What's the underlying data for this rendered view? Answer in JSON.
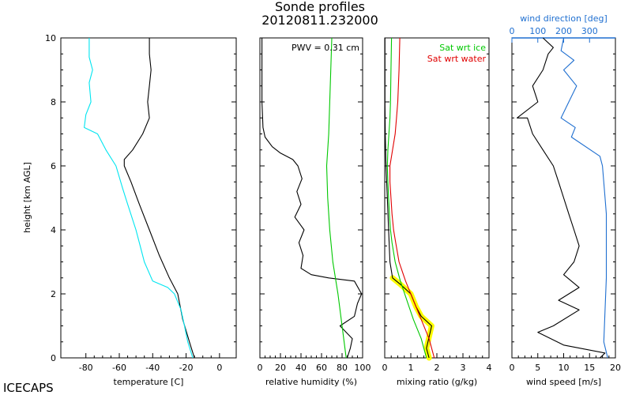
{
  "title": "Sonde profiles",
  "subtitle": "20120811.232000",
  "footer": "ICECAPS",
  "ylabel": "height [km AGL]",
  "colors": {
    "temperature": "#000000",
    "dewpoint": "#00e5f0",
    "rh": "#000000",
    "rh_ice": "#00c800",
    "mixing": "#000000",
    "mixing_highlight": "#ffff00",
    "sat_ice": "#00c800",
    "sat_water": "#e00000",
    "speed": "#000000",
    "direction": "#1f6fd0"
  },
  "chart_data": [
    {
      "type": "line",
      "panel": "temperature",
      "xlabel": "temperature [C]",
      "xlim": [
        -95,
        10
      ],
      "xticks": [
        -80,
        -60,
        -40,
        -20,
        0
      ],
      "ylim": [
        0,
        10
      ],
      "yticks": [
        0,
        2,
        4,
        6,
        8,
        10
      ],
      "series": [
        {
          "name": "temperature",
          "color": "#000000",
          "points": [
            [
              -15,
              0
            ],
            [
              -18,
              0.5
            ],
            [
              -22,
              1.2
            ],
            [
              -25,
              2
            ],
            [
              -30,
              2.5
            ],
            [
              -36,
              3.2
            ],
            [
              -42,
              4
            ],
            [
              -48,
              4.8
            ],
            [
              -53,
              5.5
            ],
            [
              -57,
              6
            ],
            [
              -57,
              6.2
            ],
            [
              -52,
              6.5
            ],
            [
              -46,
              7
            ],
            [
              -42,
              7.5
            ],
            [
              -43,
              8
            ],
            [
              -42,
              8.5
            ],
            [
              -41,
              9
            ],
            [
              -42,
              9.5
            ],
            [
              -42,
              10
            ]
          ]
        },
        {
          "name": "dewpoint",
          "color": "#00e5f0",
          "points": [
            [
              -16,
              0
            ],
            [
              -19,
              0.5
            ],
            [
              -21,
              1
            ],
            [
              -23,
              1.5
            ],
            [
              -27,
              2
            ],
            [
              -31,
              2.2
            ],
            [
              -40,
              2.4
            ],
            [
              -45,
              3
            ],
            [
              -47,
              3.4
            ],
            [
              -50,
              4
            ],
            [
              -55,
              4.8
            ],
            [
              -58,
              5.3
            ],
            [
              -62,
              6
            ],
            [
              -68,
              6.5
            ],
            [
              -73,
              7
            ],
            [
              -81,
              7.2
            ],
            [
              -80,
              7.6
            ],
            [
              -77,
              8
            ],
            [
              -78,
              8.6
            ],
            [
              -76,
              9
            ],
            [
              -78,
              9.4
            ],
            [
              -78,
              10
            ]
          ]
        }
      ]
    },
    {
      "type": "line",
      "panel": "relative_humidity",
      "xlabel": "relative humidity (%)",
      "xlim": [
        0,
        100
      ],
      "xticks": [
        0,
        20,
        40,
        60,
        80,
        100
      ],
      "ylim": [
        0,
        10
      ],
      "annotation": "PWV = 0.31 cm",
      "series": [
        {
          "name": "rh_wrt_water",
          "color": "#000000",
          "points": [
            [
              85,
              0
            ],
            [
              88,
              0.3
            ],
            [
              90,
              0.6
            ],
            [
              78,
              1
            ],
            [
              92,
              1.3
            ],
            [
              95,
              1.7
            ],
            [
              99,
              2
            ],
            [
              92,
              2.4
            ],
            [
              67,
              2.5
            ],
            [
              50,
              2.6
            ],
            [
              40,
              2.8
            ],
            [
              42,
              3.2
            ],
            [
              38,
              3.6
            ],
            [
              43,
              4
            ],
            [
              34,
              4.4
            ],
            [
              40,
              4.8
            ],
            [
              36,
              5.2
            ],
            [
              41,
              5.6
            ],
            [
              37,
              6
            ],
            [
              32,
              6.2
            ],
            [
              20,
              6.4
            ],
            [
              12,
              6.6
            ],
            [
              5,
              6.9
            ],
            [
              3,
              7.2
            ],
            [
              2,
              8
            ],
            [
              2,
              9
            ],
            [
              2,
              10
            ]
          ]
        },
        {
          "name": "rh_wrt_ice",
          "color": "#00c800",
          "points": [
            [
              84,
              0
            ],
            [
              80,
              1
            ],
            [
              76,
              2
            ],
            [
              71,
              3
            ],
            [
              68,
              4
            ],
            [
              66,
              5
            ],
            [
              65,
              6
            ],
            [
              67,
              7
            ],
            [
              68,
              8
            ],
            [
              69,
              9
            ],
            [
              70,
              10
            ]
          ]
        }
      ]
    },
    {
      "type": "line",
      "panel": "mixing_ratio",
      "xlabel": "mixing ratio (g/kg)",
      "xlim": [
        0,
        4
      ],
      "xticks": [
        0,
        1,
        2,
        3,
        4
      ],
      "ylim": [
        0,
        10
      ],
      "legend": [
        "Sat wrt ice",
        "Sat wrt water"
      ],
      "series": [
        {
          "name": "mixing ratio",
          "color": "#000000",
          "points": [
            [
              1.7,
              0
            ],
            [
              1.6,
              0.3
            ],
            [
              1.8,
              1
            ],
            [
              1.4,
              1.3
            ],
            [
              1.2,
              1.6
            ],
            [
              1.0,
              2
            ],
            [
              0.6,
              2.3
            ],
            [
              0.3,
              2.5
            ],
            [
              0.2,
              3
            ],
            [
              0.15,
              4
            ],
            [
              0.1,
              5
            ],
            [
              0.05,
              6
            ],
            [
              0.02,
              7
            ],
            [
              0.01,
              8
            ],
            [
              0.01,
              10
            ]
          ]
        },
        {
          "name": "Sat wrt ice",
          "color": "#00c800",
          "points": [
            [
              1.6,
              0
            ],
            [
              1.4,
              0.6
            ],
            [
              1.1,
              1.2
            ],
            [
              0.85,
              1.8
            ],
            [
              0.6,
              2.4
            ],
            [
              0.4,
              3
            ],
            [
              0.28,
              3.6
            ],
            [
              0.22,
              4
            ],
            [
              0.18,
              4.5
            ],
            [
              0.15,
              5
            ],
            [
              0.12,
              5.5
            ],
            [
              0.1,
              6
            ],
            [
              0.12,
              6.5
            ],
            [
              0.16,
              7
            ],
            [
              0.2,
              7.5
            ],
            [
              0.22,
              8
            ],
            [
              0.24,
              9
            ],
            [
              0.26,
              10
            ]
          ]
        },
        {
          "name": "Sat wrt water",
          "color": "#e00000",
          "points": [
            [
              1.9,
              0
            ],
            [
              1.7,
              0.6
            ],
            [
              1.4,
              1.2
            ],
            [
              1.1,
              1.8
            ],
            [
              0.8,
              2.4
            ],
            [
              0.55,
              3
            ],
            [
              0.42,
              3.6
            ],
            [
              0.34,
              4
            ],
            [
              0.28,
              4.5
            ],
            [
              0.24,
              5
            ],
            [
              0.2,
              5.5
            ],
            [
              0.2,
              6
            ],
            [
              0.3,
              6.5
            ],
            [
              0.4,
              7
            ],
            [
              0.45,
              7.5
            ],
            [
              0.5,
              8
            ],
            [
              0.55,
              9
            ],
            [
              0.58,
              10
            ]
          ]
        }
      ]
    },
    {
      "type": "line",
      "panel": "wind",
      "xlabel": "wind speed [m/s]",
      "xlim": [
        0,
        20
      ],
      "xticks": [
        0,
        5,
        10,
        15,
        20
      ],
      "top_axis_label": "wind direction [deg]",
      "top_xlim": [
        0,
        400
      ],
      "top_xticks": [
        0,
        100,
        200,
        300
      ],
      "ylim": [
        0,
        10
      ],
      "series": [
        {
          "name": "wind speed",
          "color": "#000000",
          "points": [
            [
              17,
              0
            ],
            [
              18,
              0.15
            ],
            [
              10,
              0.4
            ],
            [
              5,
              0.8
            ],
            [
              8,
              1
            ],
            [
              13,
              1.5
            ],
            [
              9,
              1.8
            ],
            [
              13,
              2.2
            ],
            [
              10,
              2.6
            ],
            [
              12,
              3
            ],
            [
              13,
              3.5
            ],
            [
              12,
              4
            ],
            [
              11,
              4.5
            ],
            [
              10,
              5
            ],
            [
              9,
              5.5
            ],
            [
              8,
              6
            ],
            [
              6,
              6.5
            ],
            [
              4,
              7
            ],
            [
              3,
              7.5
            ],
            [
              1,
              7.5
            ],
            [
              5,
              8
            ],
            [
              4,
              8.5
            ],
            [
              6,
              9
            ],
            [
              7,
              9.5
            ],
            [
              8,
              9.7
            ],
            [
              6,
              10
            ]
          ]
        },
        {
          "name": "wind direction",
          "color": "#1f6fd0",
          "points": [
            [
              370,
              0
            ],
            [
              355,
              0.5
            ],
            [
              360,
              1.5
            ],
            [
              365,
              2.5
            ],
            [
              365,
              3.5
            ],
            [
              365,
              4.5
            ],
            [
              360,
              5
            ],
            [
              350,
              6
            ],
            [
              340,
              6.3
            ],
            [
              230,
              6.9
            ],
            [
              245,
              7.2
            ],
            [
              190,
              7.5
            ],
            [
              220,
              8
            ],
            [
              250,
              8.5
            ],
            [
              200,
              9
            ],
            [
              240,
              9.3
            ],
            [
              190,
              9.6
            ],
            [
              200,
              10
            ]
          ]
        }
      ]
    }
  ]
}
